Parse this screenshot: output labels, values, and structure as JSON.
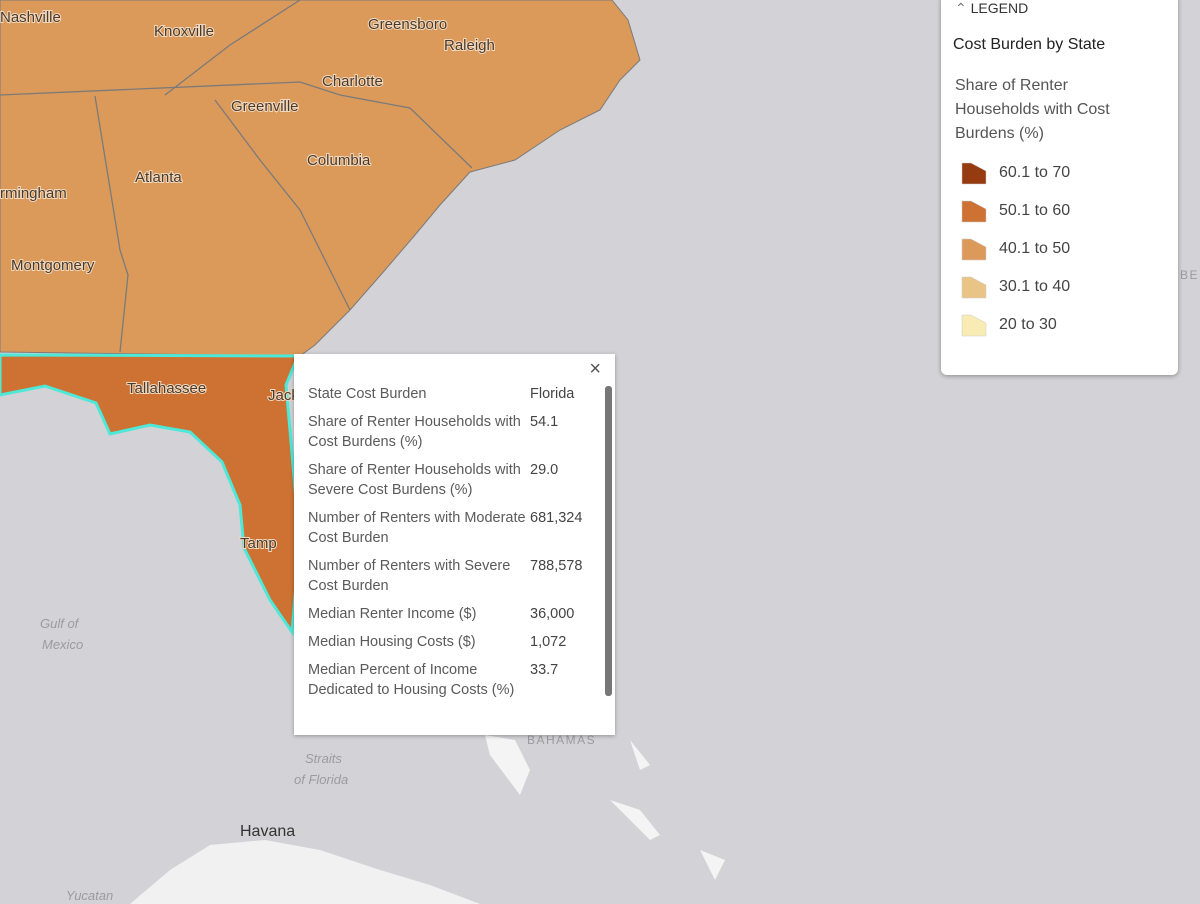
{
  "map": {
    "labels": [
      "Nashville",
      "Knoxville",
      "Greensboro",
      "Raleigh",
      "Charlotte",
      "Greenville",
      "Columbia",
      "Atlanta",
      "rmingham",
      "Montgomery",
      "Tallahassee",
      "Jack",
      "Tamp",
      "Gulf of",
      "Mexico",
      "Straits",
      "of Florida",
      "BAHAMAS",
      "Havana",
      "Yucatan",
      "BE"
    ]
  },
  "popup": {
    "close": "×",
    "rows": [
      [
        "State Cost Burden",
        "Florida"
      ],
      [
        "Share of Renter Households with Cost Burdens (%)",
        "54.1"
      ],
      [
        "Share of Renter Households with Severe Cost Burdens (%)",
        "29.0"
      ],
      [
        "Number of Renters with Moderate Cost Burden",
        "681,324"
      ],
      [
        "Number of Renters with Severe Cost Burden",
        "788,578"
      ],
      [
        "Median Renter Income ($)",
        "36,000"
      ],
      [
        "Median Housing Costs ($)",
        "1,072"
      ],
      [
        "Median Percent of Income Dedicated to Housing Costs (%)",
        "33.7"
      ]
    ]
  },
  "legend": {
    "header": "LEGEND",
    "layer": "Cost Burden by State",
    "field": "Share of Renter Households with Cost Burdens (%)",
    "classes": [
      {
        "label": "60.1 to 70",
        "color": "#963a10"
      },
      {
        "label": "50.1 to 60",
        "color": "#cd7232"
      },
      {
        "label": "40.1 to 50",
        "color": "#dc9a5a"
      },
      {
        "label": "30.1 to 40",
        "color": "#e8c487"
      },
      {
        "label": "20 to 30",
        "color": "#f8ebb4"
      }
    ]
  }
}
